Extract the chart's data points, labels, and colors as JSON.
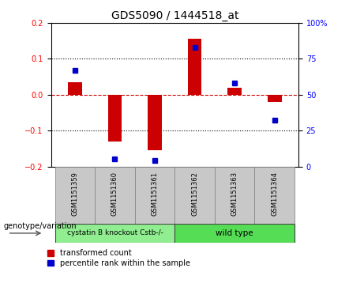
{
  "title": "GDS5090 / 1444518_at",
  "samples": [
    "GSM1151359",
    "GSM1151360",
    "GSM1151361",
    "GSM1151362",
    "GSM1151363",
    "GSM1151364"
  ],
  "red_values": [
    0.035,
    -0.13,
    -0.155,
    0.155,
    0.02,
    -0.02
  ],
  "blue_percentiles": [
    67,
    5,
    4,
    83,
    58,
    32
  ],
  "ylim": [
    -0.2,
    0.2
  ],
  "right_ylim": [
    0,
    100
  ],
  "groups": [
    {
      "label": "cystatin B knockout Cstb-/-",
      "span": [
        0,
        3
      ],
      "color": "#90EE90"
    },
    {
      "label": "wild type",
      "span": [
        3,
        6
      ],
      "color": "#55DD55"
    }
  ],
  "bar_color": "#CC0000",
  "dot_color": "#0000CC",
  "zero_line_color": "#CC0000",
  "grid_color": "#000000",
  "plot_bg": "#FFFFFF",
  "sample_box_color": "#C8C8C8",
  "genotype_label": "genotype/variation",
  "legend_red": "transformed count",
  "legend_blue": "percentile rank within the sample",
  "title_fontsize": 10,
  "tick_fontsize": 7,
  "bar_width": 0.35
}
